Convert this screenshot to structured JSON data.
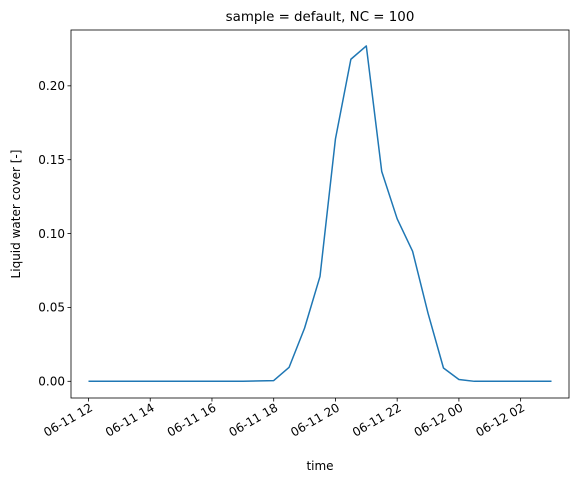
{
  "chart_data": {
    "type": "line",
    "title": "sample = default, NC = 100",
    "xlabel": "time",
    "ylabel": "Liquid water cover [-]",
    "x_ticks": [
      "06-11 12",
      "06-11 14",
      "06-11 16",
      "06-11 18",
      "06-11 20",
      "06-11 22",
      "06-12 00",
      "06-12 02"
    ],
    "y_ticks": [
      "0.00",
      "0.05",
      "0.10",
      "0.15",
      "0.20"
    ],
    "ylim": [
      -0.0113,
      0.2378
    ],
    "xlim": [
      "2023-06-11 11:26",
      "2023-06-12 03:34"
    ],
    "grid": false,
    "line_color": "#1f77b4",
    "series": [
      {
        "x": [
          "2023-06-11 12:00",
          "2023-06-11 13:00",
          "2023-06-11 14:00",
          "2023-06-11 15:00",
          "2023-06-11 16:00",
          "2023-06-11 17:00",
          "2023-06-11 18:00",
          "2023-06-11 18:30",
          "2023-06-11 19:00",
          "2023-06-11 19:30",
          "2023-06-11 20:00",
          "2023-06-11 20:30",
          "2023-06-11 21:00",
          "2023-06-11 21:30",
          "2023-06-11 22:00",
          "2023-06-11 22:30",
          "2023-06-11 23:00",
          "2023-06-11 23:30",
          "2023-06-12 00:00",
          "2023-06-12 00:30",
          "2023-06-12 01:00",
          "2023-06-12 02:00",
          "2023-06-12 03:00"
        ],
        "values": [
          0.0,
          0.0,
          0.0,
          0.0,
          0.0,
          0.0,
          0.0005,
          0.0095,
          0.036,
          0.071,
          0.164,
          0.218,
          0.227,
          0.142,
          0.11,
          0.088,
          0.046,
          0.009,
          0.0012,
          0.0,
          0.0,
          0.0,
          0.0
        ]
      }
    ]
  }
}
